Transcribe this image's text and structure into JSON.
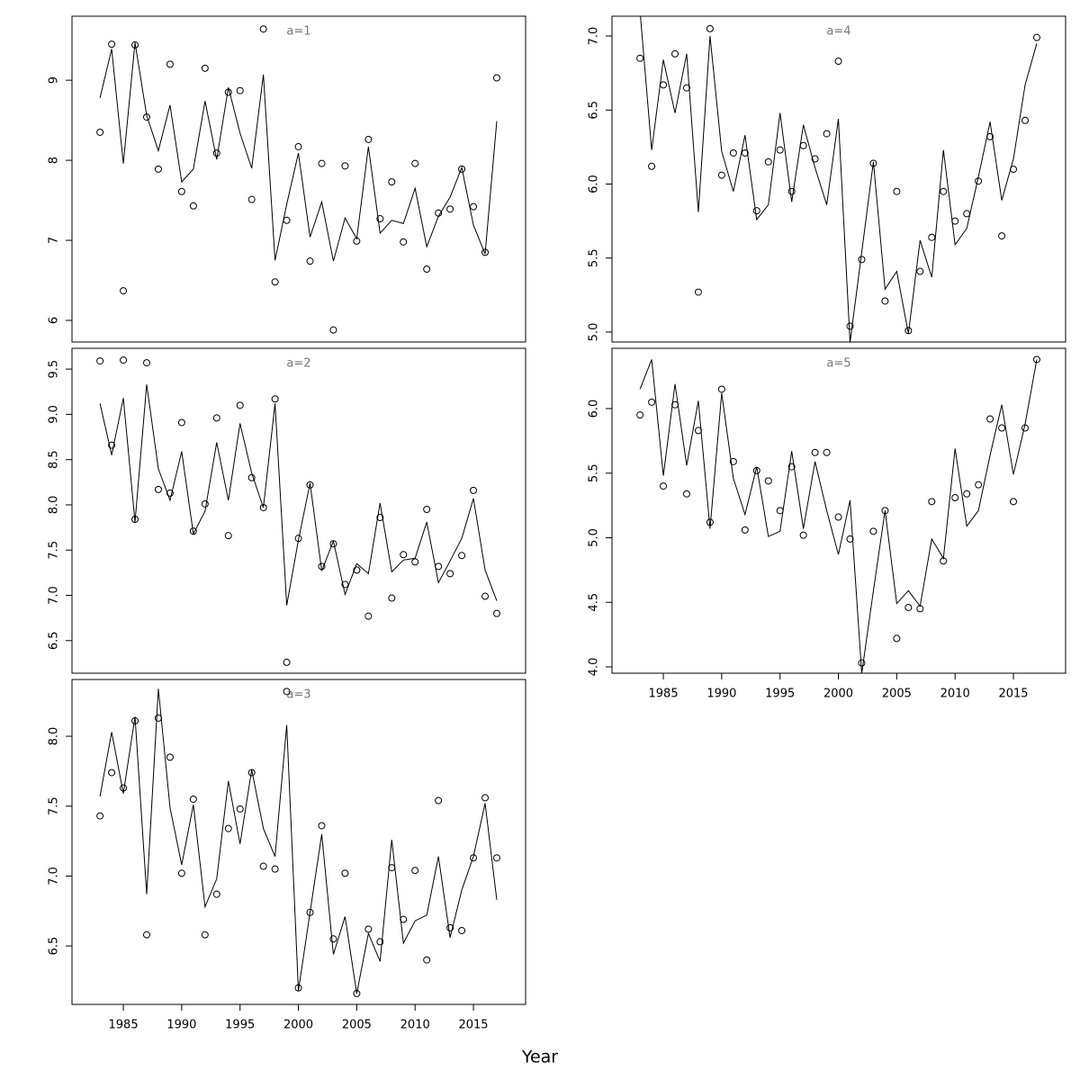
{
  "xlabel": "Year",
  "chart_data": [
    {
      "type": "line",
      "title": "a=1",
      "x": [
        1983,
        1984,
        1985,
        1986,
        1987,
        1988,
        1989,
        1990,
        1991,
        1992,
        1993,
        1994,
        1995,
        1996,
        1997,
        1998,
        1999,
        2000,
        2001,
        2002,
        2003,
        2004,
        2005,
        2006,
        2007,
        2008,
        2009,
        2010,
        2011,
        2012,
        2013,
        2014,
        2015,
        2016,
        2017
      ],
      "xlim": [
        1980.6,
        2019.47
      ],
      "ylim": [
        5.73,
        9.8
      ],
      "yticks": [
        6,
        7,
        8,
        9
      ],
      "series": [
        {
          "mode": "points",
          "color": "#000000",
          "values": [
            8.35,
            9.45,
            6.37,
            9.44,
            8.54,
            7.89,
            9.2,
            7.61,
            7.43,
            9.15,
            8.09,
            8.85,
            8.87,
            7.51,
            9.64,
            6.48,
            7.25,
            8.17,
            6.74,
            7.96,
            5.88,
            7.93,
            6.99,
            8.26,
            7.27,
            7.73,
            6.98,
            7.96,
            6.64,
            7.34,
            7.39,
            7.89,
            7.42,
            6.85,
            9.03
          ]
        },
        {
          "mode": "line",
          "color": "#000000",
          "values": [
            8.78,
            9.39,
            7.96,
            9.47,
            8.56,
            8.12,
            8.69,
            7.73,
            7.89,
            8.74,
            8.01,
            8.91,
            8.34,
            7.9,
            9.07,
            6.75,
            7.45,
            8.09,
            7.04,
            7.48,
            6.74,
            7.28,
            7.02,
            8.17,
            7.09,
            7.25,
            7.21,
            7.65,
            6.92,
            7.3,
            7.54,
            7.91,
            7.19,
            6.83,
            8.49
          ]
        }
      ]
    },
    {
      "type": "line",
      "title": "a=2",
      "x": [
        1983,
        1984,
        1985,
        1986,
        1987,
        1988,
        1989,
        1990,
        1991,
        1992,
        1993,
        1994,
        1995,
        1996,
        1997,
        1998,
        1999,
        2000,
        2001,
        2002,
        2003,
        2004,
        2005,
        2006,
        2007,
        2008,
        2009,
        2010,
        2011,
        2012,
        2013,
        2014,
        2015,
        2016,
        2017
      ],
      "xlim": [
        1980.6,
        2019.47
      ],
      "ylim": [
        6.14,
        9.73
      ],
      "yticks": [
        6.5,
        {
          "value": 7,
          "label": "7.0"
        },
        7.5,
        {
          "value": 8,
          "label": "8.0"
        },
        8.5,
        {
          "value": 9,
          "label": "9.0"
        },
        9.5
      ],
      "series": [
        {
          "mode": "points",
          "color": "#000000",
          "values": [
            9.59,
            8.66,
            9.6,
            7.84,
            9.57,
            8.17,
            8.13,
            8.91,
            7.71,
            8.01,
            8.96,
            7.66,
            9.1,
            8.3,
            7.97,
            9.17,
            6.26,
            7.63,
            8.22,
            7.32,
            7.57,
            7.12,
            7.28,
            6.77,
            7.86,
            6.97,
            7.45,
            7.37,
            7.95,
            7.32,
            7.24,
            7.44,
            8.16,
            6.99,
            6.8
          ]
        },
        {
          "mode": "line",
          "color": "#000000",
          "values": [
            9.12,
            8.55,
            9.18,
            7.81,
            9.33,
            8.4,
            8.05,
            8.59,
            7.68,
            7.93,
            8.69,
            8.05,
            8.9,
            8.35,
            7.97,
            9.12,
            6.89,
            7.61,
            8.24,
            7.27,
            7.6,
            7.01,
            7.35,
            7.24,
            8.02,
            7.26,
            7.39,
            7.41,
            7.81,
            7.14,
            7.38,
            7.63,
            8.07,
            7.28,
            6.94
          ]
        }
      ]
    },
    {
      "type": "line",
      "title": "a=3",
      "x": [
        1983,
        1984,
        1985,
        1986,
        1987,
        1988,
        1989,
        1990,
        1991,
        1992,
        1993,
        1994,
        1995,
        1996,
        1997,
        1998,
        1999,
        2000,
        2001,
        2002,
        2003,
        2004,
        2005,
        2006,
        2007,
        2008,
        2009,
        2010,
        2011,
        2012,
        2013,
        2014,
        2015,
        2016,
        2017
      ],
      "xlim": [
        1980.6,
        2019.47
      ],
      "xticks": [
        1985,
        1990,
        1995,
        2000,
        2005,
        2010,
        2015
      ],
      "ylim": [
        6.082,
        8.406
      ],
      "yticks": [
        6.5,
        {
          "value": 7,
          "label": "7.0"
        },
        7.5,
        {
          "value": 8,
          "label": "8.0"
        }
      ],
      "series": [
        {
          "mode": "points",
          "color": "#000000",
          "values": [
            7.43,
            7.74,
            7.63,
            8.11,
            6.58,
            8.13,
            7.85,
            7.02,
            7.55,
            6.58,
            6.87,
            7.34,
            7.48,
            7.74,
            7.07,
            7.05,
            8.32,
            6.2,
            6.74,
            7.36,
            6.55,
            7.02,
            6.16,
            6.62,
            6.53,
            7.06,
            6.69,
            7.04,
            6.4,
            7.54,
            6.63,
            6.61,
            7.13,
            7.56,
            7.13
          ]
        },
        {
          "mode": "line",
          "color": "#000000",
          "values": [
            7.57,
            8.03,
            7.59,
            8.14,
            6.87,
            8.34,
            7.49,
            7.08,
            7.51,
            6.78,
            6.98,
            7.68,
            7.23,
            7.76,
            7.34,
            7.14,
            8.08,
            6.18,
            6.74,
            7.3,
            6.44,
            6.71,
            6.16,
            6.59,
            6.39,
            7.26,
            6.52,
            6.68,
            6.72,
            7.14,
            6.56,
            6.9,
            7.14,
            7.52,
            6.83
          ]
        }
      ]
    },
    {
      "type": "line",
      "title": "a=4",
      "x": [
        1983,
        1984,
        1985,
        1986,
        1987,
        1988,
        1989,
        1990,
        1991,
        1992,
        1993,
        1994,
        1995,
        1996,
        1997,
        1998,
        1999,
        2000,
        2001,
        2002,
        2003,
        2004,
        2005,
        2006,
        2007,
        2008,
        2009,
        2010,
        2011,
        2012,
        2013,
        2014,
        2015,
        2016,
        2017
      ],
      "xlim": [
        1980.6,
        2019.47
      ],
      "ylim": [
        4.933,
        7.134
      ],
      "yticks": [
        {
          "value": 5,
          "label": "5.0"
        },
        5.5,
        {
          "value": 6,
          "label": "6.0"
        },
        6.5,
        {
          "value": 7,
          "label": "7.0"
        }
      ],
      "series": [
        {
          "mode": "points",
          "color": "#000000",
          "values": [
            6.85,
            6.12,
            6.67,
            6.88,
            6.65,
            5.27,
            7.05,
            6.06,
            6.21,
            6.21,
            5.82,
            6.15,
            6.23,
            5.95,
            6.26,
            6.17,
            6.34,
            6.83,
            5.04,
            5.49,
            6.14,
            5.21,
            5.95,
            5.01,
            5.41,
            5.64,
            5.95,
            5.75,
            5.8,
            6.02,
            6.32,
            5.65,
            6.1,
            6.43,
            6.99
          ]
        },
        {
          "mode": "line",
          "color": "#000000",
          "values": [
            7.17,
            6.23,
            6.84,
            6.48,
            6.88,
            5.81,
            7.0,
            6.22,
            5.95,
            6.33,
            5.76,
            5.86,
            6.48,
            5.88,
            6.4,
            6.11,
            5.86,
            6.44,
            4.93,
            5.54,
            6.15,
            5.29,
            5.41,
            4.99,
            5.62,
            5.37,
            6.23,
            5.59,
            5.7,
            6.05,
            6.42,
            5.89,
            6.17,
            6.67,
            6.95
          ]
        }
      ]
    },
    {
      "type": "line",
      "title": "a=5",
      "x": [
        1983,
        1984,
        1985,
        1986,
        1987,
        1988,
        1989,
        1990,
        1991,
        1992,
        1993,
        1994,
        1995,
        1996,
        1997,
        1998,
        1999,
        2000,
        2001,
        2002,
        2003,
        2004,
        2005,
        2006,
        2007,
        2008,
        2009,
        2010,
        2011,
        2012,
        2013,
        2014,
        2015,
        2016,
        2017
      ],
      "xlim": [
        1980.6,
        2019.47
      ],
      "xticks": [
        1985,
        1990,
        1995,
        2000,
        2005,
        2010,
        2015
      ],
      "ylim": [
        3.951,
        6.467
      ],
      "yticks": [
        {
          "value": 4,
          "label": "4.0"
        },
        4.5,
        {
          "value": 5,
          "label": "5.0"
        },
        5.5,
        {
          "value": 6,
          "label": "6.0"
        }
      ],
      "series": [
        {
          "mode": "points",
          "color": "#000000",
          "values": [
            5.95,
            6.05,
            5.4,
            6.03,
            5.34,
            5.83,
            5.12,
            6.15,
            5.59,
            5.06,
            5.52,
            5.44,
            5.21,
            5.55,
            5.02,
            5.66,
            5.66,
            5.16,
            4.99,
            4.03,
            5.05,
            5.21,
            4.22,
            4.46,
            4.45,
            5.28,
            4.82,
            5.31,
            5.34,
            5.41,
            5.92,
            5.85,
            5.28,
            5.85,
            6.38
          ]
        },
        {
          "mode": "line",
          "color": "#000000",
          "values": [
            6.15,
            6.38,
            5.48,
            6.19,
            5.56,
            6.06,
            5.07,
            6.12,
            5.46,
            5.18,
            5.55,
            5.01,
            5.05,
            5.67,
            5.07,
            5.59,
            5.21,
            4.87,
            5.29,
            3.95,
            4.59,
            5.21,
            4.49,
            4.59,
            4.47,
            4.99,
            4.84,
            5.69,
            5.09,
            5.21,
            5.64,
            6.03,
            5.49,
            5.88,
            6.38
          ]
        }
      ]
    }
  ]
}
